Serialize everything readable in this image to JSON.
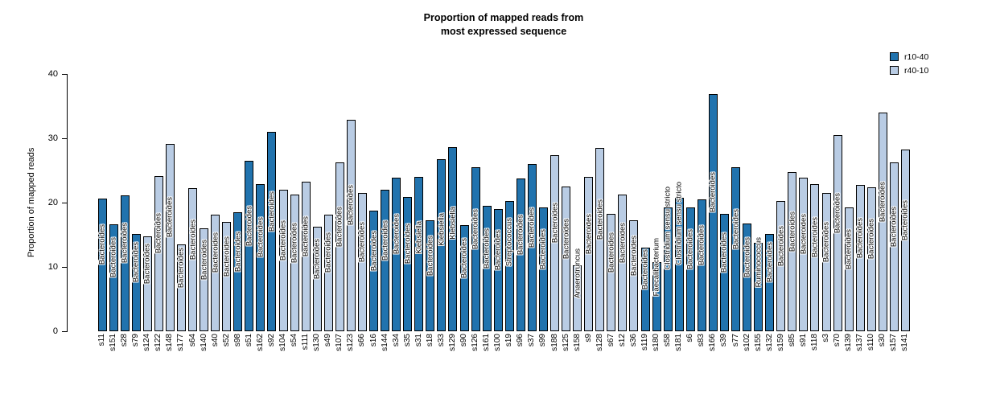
{
  "title": {
    "line1": "Proportion of mapped reads from",
    "line2": "most expressed sequence"
  },
  "y_axis": {
    "label": "Proportion of mapped reads",
    "ticks": [
      0,
      10,
      20,
      30,
      40
    ],
    "max": 40
  },
  "legend": [
    {
      "label": "r10-40",
      "color": "#2173ae"
    },
    {
      "label": "r40-10",
      "color": "#b9cce4"
    }
  ],
  "chart_data": {
    "type": "bar",
    "title": "Proportion of mapped reads from most expressed sequence",
    "xlabel": "",
    "ylabel": "Proportion of mapped reads",
    "ylim": [
      0,
      40
    ],
    "grid": false,
    "legend_position": "top-right",
    "groups": {
      "r10-40": "#2173ae",
      "r40-10": "#b9cce4"
    },
    "bars": [
      {
        "sample": "s11",
        "genus": "Bacteroides",
        "group": "r10-40",
        "value": 20.6
      },
      {
        "sample": "s151",
        "genus": "Bacteroides",
        "group": "r10-40",
        "value": 16.6
      },
      {
        "sample": "s28",
        "genus": "Bacteroides",
        "group": "r10-40",
        "value": 21.1
      },
      {
        "sample": "s79",
        "genus": "Bacteroides",
        "group": "r10-40",
        "value": 15.1
      },
      {
        "sample": "s124",
        "genus": "Bacteroides",
        "group": "r40-10",
        "value": 14.7
      },
      {
        "sample": "s122",
        "genus": "Bacteroides",
        "group": "r40-10",
        "value": 24.1
      },
      {
        "sample": "s148",
        "genus": "Bacteroides",
        "group": "r40-10",
        "value": 29.1
      },
      {
        "sample": "s177",
        "genus": "Bacteroides",
        "group": "r40-10",
        "value": 13.5
      },
      {
        "sample": "s64",
        "genus": "Bacteroides",
        "group": "r40-10",
        "value": 22.2
      },
      {
        "sample": "s140",
        "genus": "Bacteroides",
        "group": "r40-10",
        "value": 16.0
      },
      {
        "sample": "s40",
        "genus": "Bacteroides",
        "group": "r40-10",
        "value": 18.1
      },
      {
        "sample": "s52",
        "genus": "Bacteroides",
        "group": "r40-10",
        "value": 17.0
      },
      {
        "sample": "s98",
        "genus": "Bacteroides",
        "group": "r10-40",
        "value": 18.5
      },
      {
        "sample": "s51",
        "genus": "Bacteroides",
        "group": "r10-40",
        "value": 26.5
      },
      {
        "sample": "s162",
        "genus": "Bacteroides",
        "group": "r10-40",
        "value": 22.9
      },
      {
        "sample": "s92",
        "genus": "Bacteroides",
        "group": "r10-40",
        "value": 31.0
      },
      {
        "sample": "s104",
        "genus": "Bacteroides",
        "group": "r40-10",
        "value": 22.0
      },
      {
        "sample": "s54",
        "genus": "Bacteroides",
        "group": "r40-10",
        "value": 21.3
      },
      {
        "sample": "s111",
        "genus": "Bacteroides",
        "group": "r40-10",
        "value": 23.2
      },
      {
        "sample": "s130",
        "genus": "Bacteroides",
        "group": "r40-10",
        "value": 16.3
      },
      {
        "sample": "s49",
        "genus": "Bacteroides",
        "group": "r40-10",
        "value": 18.1
      },
      {
        "sample": "s107",
        "genus": "Bacteroides",
        "group": "r40-10",
        "value": 26.2
      },
      {
        "sample": "s123",
        "genus": "Bacteroides",
        "group": "r40-10",
        "value": 32.9
      },
      {
        "sample": "s66",
        "genus": "Bacteroides",
        "group": "r40-10",
        "value": 21.5
      },
      {
        "sample": "s16",
        "genus": "Bacteroides",
        "group": "r10-40",
        "value": 18.7
      },
      {
        "sample": "s144",
        "genus": "Bacteroides",
        "group": "r10-40",
        "value": 22.0
      },
      {
        "sample": "s34",
        "genus": "Bacteroides",
        "group": "r10-40",
        "value": 23.9
      },
      {
        "sample": "s35",
        "genus": "Bacteroides",
        "group": "r10-40",
        "value": 20.9
      },
      {
        "sample": "s31",
        "genus": "Klebsiella",
        "group": "r10-40",
        "value": 24.0
      },
      {
        "sample": "s18",
        "genus": "Bacteroides",
        "group": "r10-40",
        "value": 17.3
      },
      {
        "sample": "s33",
        "genus": "Klebsiella",
        "group": "r10-40",
        "value": 26.7
      },
      {
        "sample": "s129",
        "genus": "Klebsiella",
        "group": "r10-40",
        "value": 28.6
      },
      {
        "sample": "s90",
        "genus": "Bacteroides",
        "group": "r10-40",
        "value": 16.5
      },
      {
        "sample": "s126",
        "genus": "Bacteroides",
        "group": "r10-40",
        "value": 25.5
      },
      {
        "sample": "s161",
        "genus": "Bacteroides",
        "group": "r10-40",
        "value": 19.5
      },
      {
        "sample": "s100",
        "genus": "Bacteroides",
        "group": "r10-40",
        "value": 19.0
      },
      {
        "sample": "s19",
        "genus": "Streptococcus",
        "group": "r10-40",
        "value": 20.2
      },
      {
        "sample": "s96",
        "genus": "Bacteroides",
        "group": "r10-40",
        "value": 23.8
      },
      {
        "sample": "s37",
        "genus": "Bacteroides",
        "group": "r10-40",
        "value": 26.0
      },
      {
        "sample": "s99",
        "genus": "Bacteroides",
        "group": "r10-40",
        "value": 19.3
      },
      {
        "sample": "s188",
        "genus": "Bacteroides",
        "group": "r40-10",
        "value": 27.4
      },
      {
        "sample": "s125",
        "genus": "Bacteroides",
        "group": "r40-10",
        "value": 22.5
      },
      {
        "sample": "s158",
        "genus": "Anaerotruncus",
        "group": "r40-10",
        "value": 10.2
      },
      {
        "sample": "s9",
        "genus": "Bacteroides",
        "group": "r40-10",
        "value": 24.0
      },
      {
        "sample": "s128",
        "genus": "Bacteroides",
        "group": "r40-10",
        "value": 28.5
      },
      {
        "sample": "s67",
        "genus": "Bacteroides",
        "group": "r40-10",
        "value": 18.2
      },
      {
        "sample": "s12",
        "genus": "Bacteroides",
        "group": "r40-10",
        "value": 21.2
      },
      {
        "sample": "s36",
        "genus": "Bacteroides",
        "group": "r40-10",
        "value": 17.3
      },
      {
        "sample": "s119",
        "genus": "Bacteroides",
        "group": "r10-40",
        "value": 13.0
      },
      {
        "sample": "s180",
        "genus": "Faecalibacterium",
        "group": "r10-40",
        "value": 10.8
      },
      {
        "sample": "s58",
        "genus": "Clostridium sensu stricto",
        "group": "r10-40",
        "value": 19.2
      },
      {
        "sample": "s181",
        "genus": "Clostridium sensu stricto",
        "group": "r10-40",
        "value": 20.7
      },
      {
        "sample": "s6",
        "genus": "Bacteroides",
        "group": "r10-40",
        "value": 19.3
      },
      {
        "sample": "s83",
        "genus": "Bacteroides",
        "group": "r10-40",
        "value": 20.5
      },
      {
        "sample": "s166",
        "genus": "Bacteroides",
        "group": "r10-40",
        "value": 36.9
      },
      {
        "sample": "s39",
        "genus": "Bacteroides",
        "group": "r10-40",
        "value": 18.3
      },
      {
        "sample": "s77",
        "genus": "Bacteroides",
        "group": "r10-40",
        "value": 25.5
      },
      {
        "sample": "s102",
        "genus": "Bacteroides",
        "group": "r10-40",
        "value": 16.7
      },
      {
        "sample": "s155",
        "genus": "Ruminococcus",
        "group": "r10-40",
        "value": 13.7
      },
      {
        "sample": "s132",
        "genus": "Bacteroides",
        "group": "r10-40",
        "value": 15.1
      },
      {
        "sample": "s159",
        "genus": "Bacteroides",
        "group": "r40-10",
        "value": 20.3
      },
      {
        "sample": "s85",
        "genus": "Bacteroides",
        "group": "r40-10",
        "value": 24.8
      },
      {
        "sample": "s91",
        "genus": "Bacteroides",
        "group": "r40-10",
        "value": 23.9
      },
      {
        "sample": "s118",
        "genus": "Bacteroides",
        "group": "r40-10",
        "value": 22.9
      },
      {
        "sample": "s3",
        "genus": "Bacteroides",
        "group": "r40-10",
        "value": 21.5
      },
      {
        "sample": "s70",
        "genus": "Bacteroides",
        "group": "r40-10",
        "value": 30.5
      },
      {
        "sample": "s139",
        "genus": "Bacteroides",
        "group": "r40-10",
        "value": 19.2
      },
      {
        "sample": "s137",
        "genus": "Bacteroides",
        "group": "r40-10",
        "value": 22.7
      },
      {
        "sample": "s110",
        "genus": "Bacteroides",
        "group": "r40-10",
        "value": 22.4
      },
      {
        "sample": "s30",
        "genus": "Bacteroides",
        "group": "r40-10",
        "value": 34.0
      },
      {
        "sample": "s157",
        "genus": "Bacteroides",
        "group": "r40-10",
        "value": 26.3
      },
      {
        "sample": "s141",
        "genus": "Bacteroides",
        "group": "r40-10",
        "value": 28.3
      }
    ]
  }
}
